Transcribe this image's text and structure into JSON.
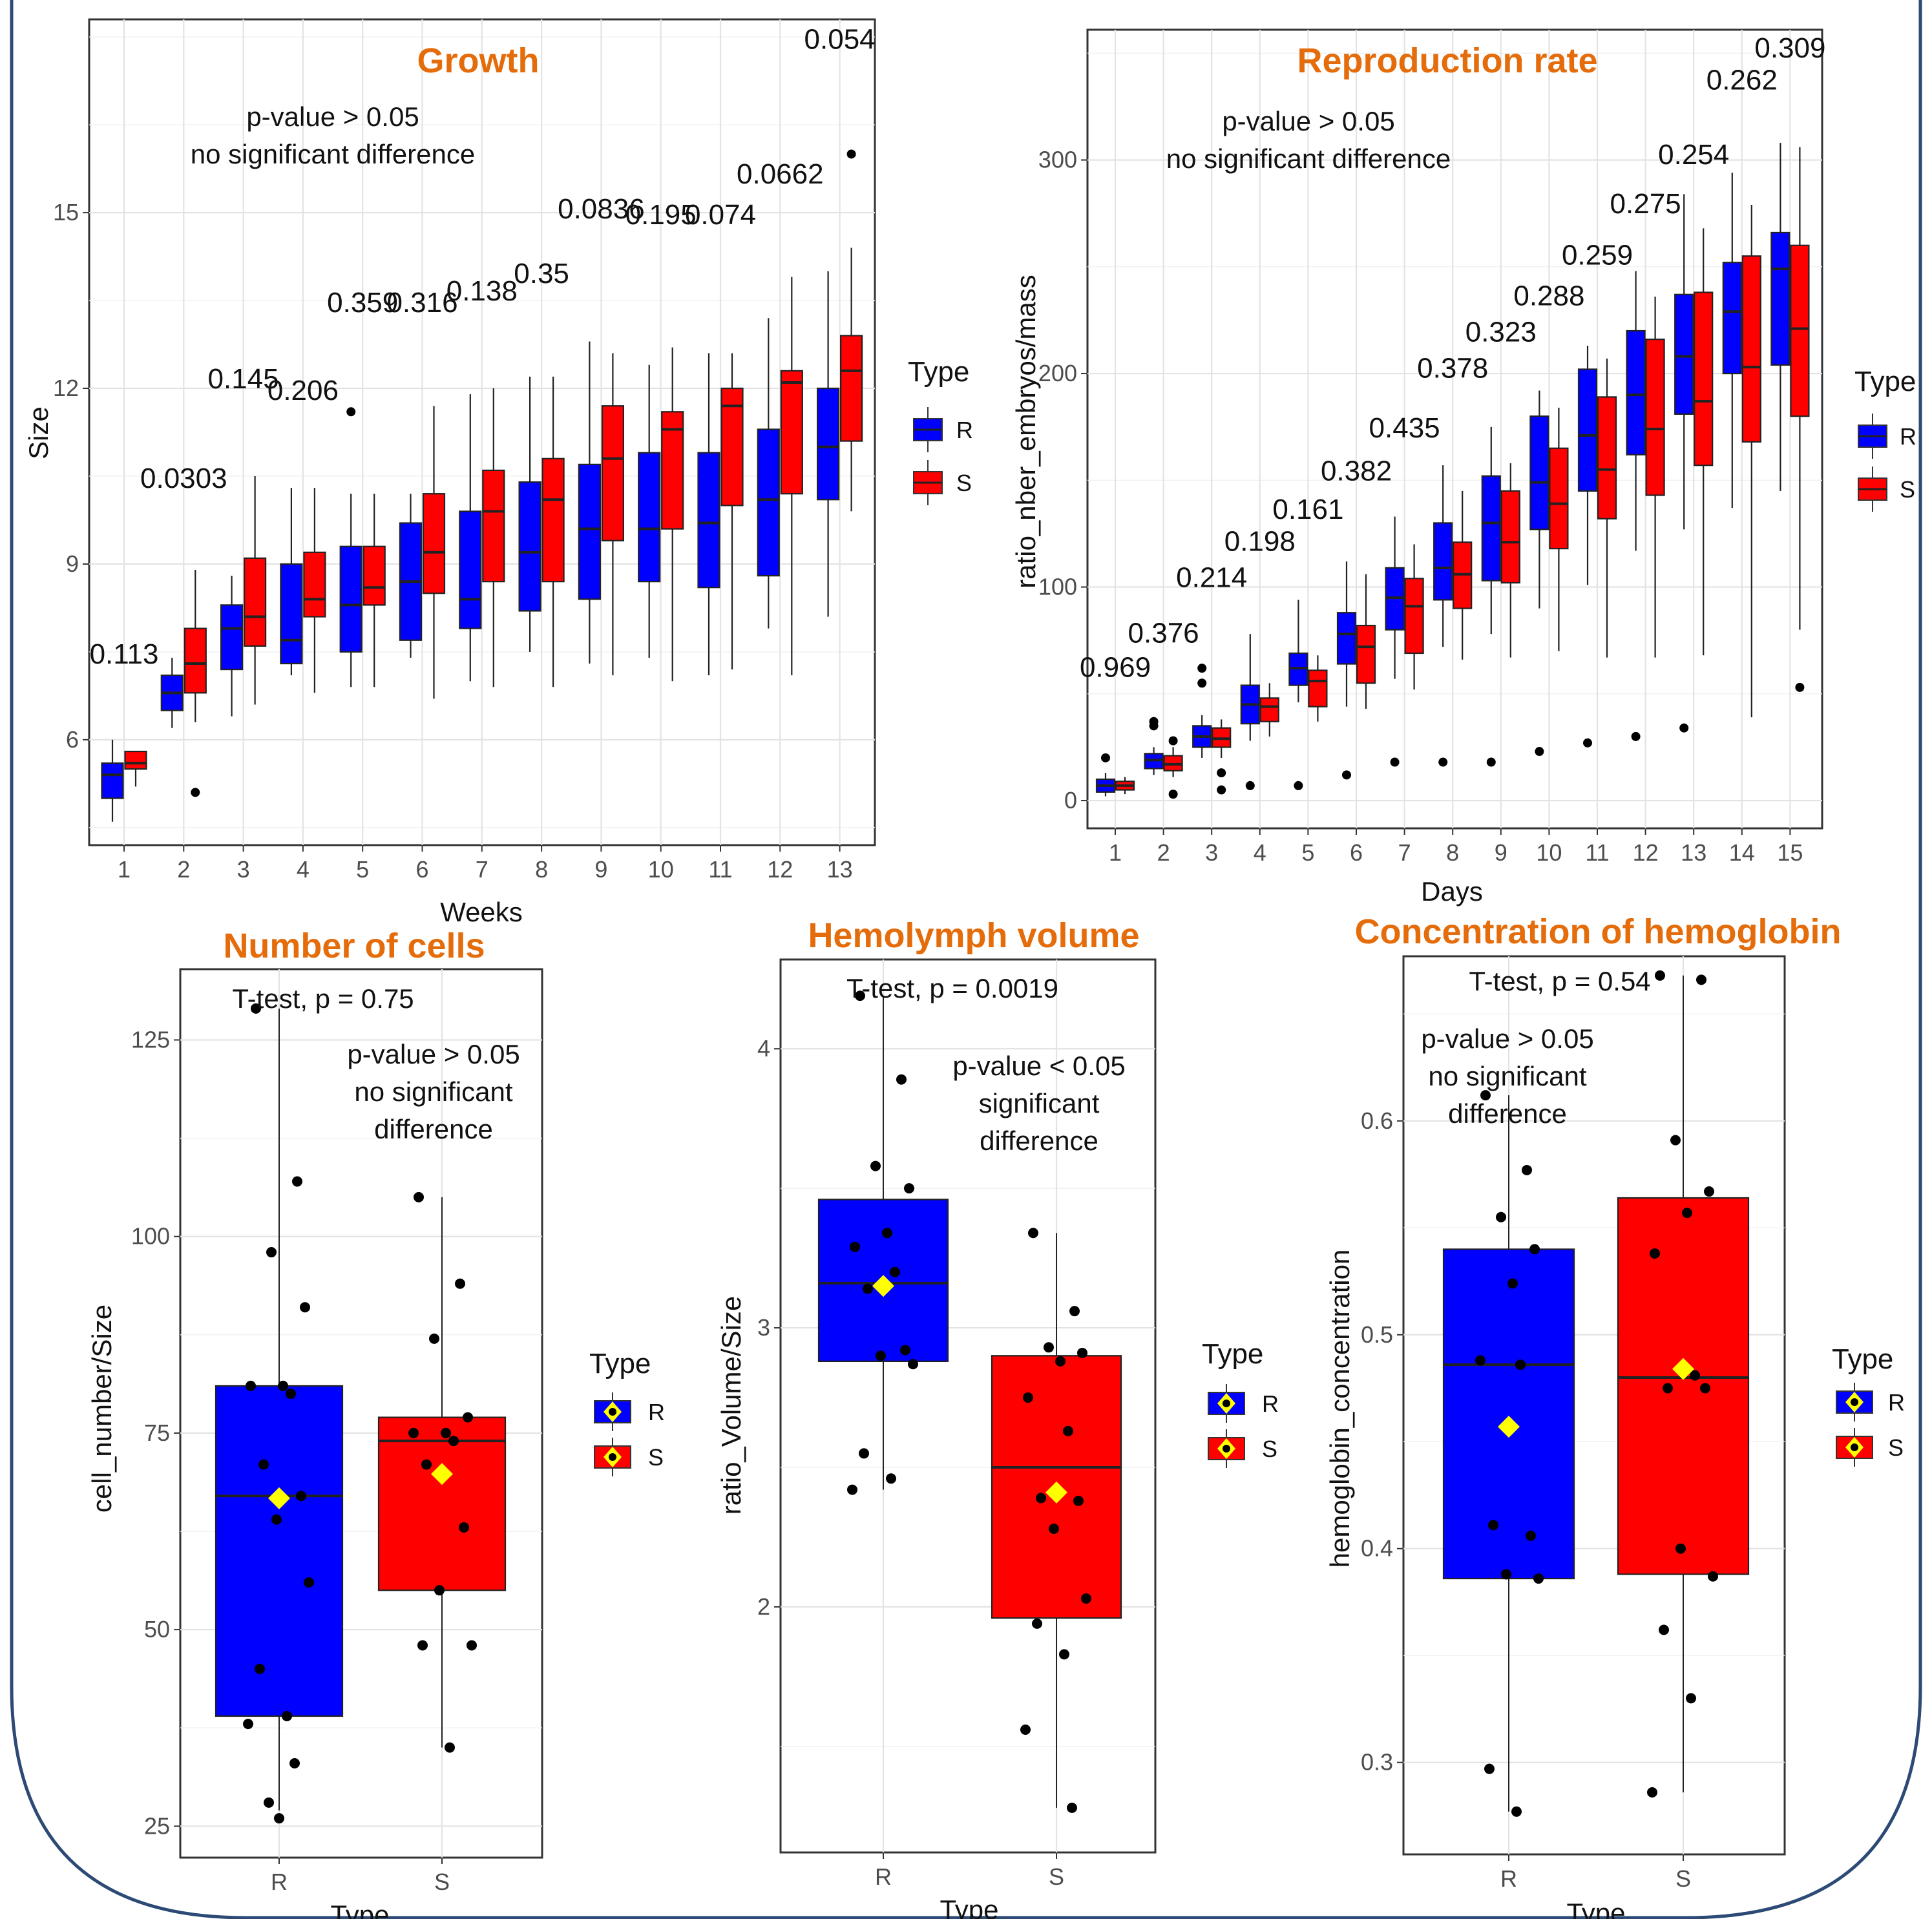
{
  "colors": {
    "R": "#0000ff",
    "S": "#ff0000",
    "title": "#e46c0a",
    "mean_marker": "#ffff00",
    "frame": "#2c4a75"
  },
  "panels": {
    "growth": {
      "title": "Growth",
      "note_line1": "p-value > 0.05",
      "note_line2": "no significant difference",
      "legend_title": "Type",
      "legend_R": "R",
      "legend_S": "S"
    },
    "reproduction": {
      "title": "Reproduction rate",
      "note_line1": "p-value > 0.05",
      "note_line2": "no significant difference",
      "legend_title": "Type",
      "legend_R": "R",
      "legend_S": "S"
    },
    "cells": {
      "title": "Number of cells",
      "ttest": "T-test, p = 0.75",
      "note_line1": "p-value > 0.05",
      "note_line2": "no significant",
      "note_line3": "difference",
      "legend_title": "Type",
      "legend_R": "R",
      "legend_S": "S"
    },
    "hemolymph": {
      "title": "Hemolymph volume",
      "ttest": "T-test, p = 0.0019",
      "note_line1": "p-value < 0.05",
      "note_line2": "significant",
      "note_line3": "difference",
      "legend_title": "Type",
      "legend_R": "R",
      "legend_S": "S"
    },
    "hemoglobin": {
      "title": "Concentration of hemoglobin",
      "ttest": "T-test, p = 0.54",
      "note_line1": "p-value > 0.05",
      "note_line2": "no significant",
      "note_line3": "difference",
      "legend_title": "Type",
      "legend_R": "R",
      "legend_S": "S"
    }
  },
  "chart_data": [
    {
      "type": "boxplot",
      "title": "Growth",
      "xlabel": "Weeks",
      "ylabel": "Size",
      "ylim": [
        4.2,
        18.3
      ],
      "yticks": [
        6,
        9,
        12,
        15
      ],
      "categories": [
        "1",
        "2",
        "3",
        "4",
        "5",
        "6",
        "7",
        "8",
        "9",
        "10",
        "11",
        "12",
        "13"
      ],
      "p_values": [
        "0.113",
        "0.0303",
        "0.145",
        "0.206",
        "0.359",
        "0.316",
        "0.138",
        "0.35",
        "0.0836",
        "0.195",
        "0.074",
        "0.0662",
        "0.054"
      ],
      "p_label_y": [
        7.3,
        10.3,
        12.0,
        11.8,
        13.3,
        13.3,
        13.5,
        13.8,
        14.9,
        14.8,
        14.8,
        15.5,
        17.8
      ],
      "series": [
        {
          "name": "R",
          "boxes": [
            {
              "min": 4.6,
              "q1": 5.0,
              "median": 5.4,
              "q3": 5.6,
              "max": 6.0,
              "outliers": []
            },
            {
              "min": 6.2,
              "q1": 6.5,
              "median": 6.8,
              "q3": 7.1,
              "max": 7.4,
              "outliers": []
            },
            {
              "min": 6.4,
              "q1": 7.2,
              "median": 7.9,
              "q3": 8.3,
              "max": 8.8,
              "outliers": []
            },
            {
              "min": 7.1,
              "q1": 7.3,
              "median": 7.7,
              "q3": 9.0,
              "max": 10.3,
              "outliers": []
            },
            {
              "min": 6.9,
              "q1": 7.5,
              "median": 8.3,
              "q3": 9.3,
              "max": 10.2,
              "outliers": [
                11.6
              ]
            },
            {
              "min": 7.4,
              "q1": 7.7,
              "median": 8.7,
              "q3": 9.7,
              "max": 10.2,
              "outliers": []
            },
            {
              "min": 7.0,
              "q1": 7.9,
              "median": 8.4,
              "q3": 9.9,
              "max": 11.9,
              "outliers": []
            },
            {
              "min": 7.5,
              "q1": 8.2,
              "median": 9.2,
              "q3": 10.4,
              "max": 12.2,
              "outliers": []
            },
            {
              "min": 7.3,
              "q1": 8.4,
              "median": 9.6,
              "q3": 10.7,
              "max": 12.8,
              "outliers": []
            },
            {
              "min": 7.4,
              "q1": 8.7,
              "median": 9.6,
              "q3": 10.9,
              "max": 12.4,
              "outliers": []
            },
            {
              "min": 7.1,
              "q1": 8.6,
              "median": 9.7,
              "q3": 10.9,
              "max": 12.6,
              "outliers": []
            },
            {
              "min": 7.9,
              "q1": 8.8,
              "median": 10.1,
              "q3": 11.3,
              "max": 13.2,
              "outliers": []
            },
            {
              "min": 8.1,
              "q1": 10.1,
              "median": 11.0,
              "q3": 12.0,
              "max": 14.0,
              "outliers": []
            }
          ]
        },
        {
          "name": "S",
          "boxes": [
            {
              "min": 5.2,
              "q1": 5.5,
              "median": 5.6,
              "q3": 5.8,
              "max": 5.8,
              "outliers": []
            },
            {
              "min": 6.3,
              "q1": 6.8,
              "median": 7.3,
              "q3": 7.9,
              "max": 8.9,
              "outliers": [
                5.1
              ]
            },
            {
              "min": 6.6,
              "q1": 7.6,
              "median": 8.1,
              "q3": 9.1,
              "max": 10.5,
              "outliers": []
            },
            {
              "min": 6.8,
              "q1": 8.1,
              "median": 8.4,
              "q3": 9.2,
              "max": 10.3,
              "outliers": []
            },
            {
              "min": 6.9,
              "q1": 8.3,
              "median": 8.6,
              "q3": 9.3,
              "max": 10.2,
              "outliers": []
            },
            {
              "min": 6.7,
              "q1": 8.5,
              "median": 9.2,
              "q3": 10.2,
              "max": 11.7,
              "outliers": []
            },
            {
              "min": 6.9,
              "q1": 8.7,
              "median": 9.9,
              "q3": 10.6,
              "max": 12.0,
              "outliers": []
            },
            {
              "min": 6.9,
              "q1": 8.7,
              "median": 10.1,
              "q3": 10.8,
              "max": 12.2,
              "outliers": []
            },
            {
              "min": 7.1,
              "q1": 9.4,
              "median": 10.8,
              "q3": 11.7,
              "max": 12.6,
              "outliers": []
            },
            {
              "min": 7.0,
              "q1": 9.6,
              "median": 11.3,
              "q3": 11.6,
              "max": 12.7,
              "outliers": []
            },
            {
              "min": 7.2,
              "q1": 10.0,
              "median": 11.7,
              "q3": 12.0,
              "max": 12.6,
              "outliers": []
            },
            {
              "min": 7.1,
              "q1": 10.2,
              "median": 12.1,
              "q3": 12.3,
              "max": 13.9,
              "outliers": []
            },
            {
              "min": 9.9,
              "q1": 11.1,
              "median": 12.3,
              "q3": 12.9,
              "max": 14.4,
              "outliers": [
                16.0
              ]
            }
          ]
        }
      ],
      "grid": true,
      "legend": "right"
    },
    {
      "type": "boxplot",
      "title": "Reproduction rate",
      "xlabel": "Days",
      "ylabel": "ratio_nber_embryos/mass",
      "ylim": [
        -13,
        361
      ],
      "yticks": [
        0,
        100,
        200,
        300
      ],
      "categories": [
        "1",
        "2",
        "3",
        "4",
        "5",
        "6",
        "7",
        "8",
        "9",
        "10",
        "11",
        "12",
        "13",
        "14",
        "15"
      ],
      "p_values": [
        "0.969",
        "0.376",
        "0.214",
        "0.198",
        "0.161",
        "0.382",
        "0.435",
        "0.378",
        "0.323",
        "0.288",
        "0.259",
        "0.275",
        "0.254",
        "0.262",
        "0.309"
      ],
      "p_label_y": [
        58,
        74,
        100,
        117,
        132,
        150,
        170,
        198,
        215,
        232,
        251,
        275,
        298,
        333,
        348
      ],
      "series": [
        {
          "name": "R",
          "boxes": [
            {
              "min": 2,
              "q1": 4,
              "median": 7,
              "q3": 10,
              "max": 13,
              "outliers": [
                20
              ]
            },
            {
              "min": 12,
              "q1": 15,
              "median": 19,
              "q3": 22,
              "max": 25,
              "outliers": [
                35,
                37
              ]
            },
            {
              "min": 20,
              "q1": 25,
              "median": 30,
              "q3": 35,
              "max": 40,
              "outliers": [
                55,
                62
              ]
            },
            {
              "min": 28,
              "q1": 36,
              "median": 45,
              "q3": 54,
              "max": 78,
              "outliers": [
                7
              ]
            },
            {
              "min": 46,
              "q1": 54,
              "median": 62,
              "q3": 69,
              "max": 94,
              "outliers": [
                7
              ]
            },
            {
              "min": 44,
              "q1": 64,
              "median": 78,
              "q3": 88,
              "max": 112,
              "outliers": [
                12
              ]
            },
            {
              "min": 57,
              "q1": 80,
              "median": 95,
              "q3": 109,
              "max": 133,
              "outliers": [
                18
              ]
            },
            {
              "min": 72,
              "q1": 94,
              "median": 109,
              "q3": 130,
              "max": 157,
              "outliers": [
                18
              ]
            },
            {
              "min": 78,
              "q1": 103,
              "median": 130,
              "q3": 152,
              "max": 175,
              "outliers": [
                18
              ]
            },
            {
              "min": 90,
              "q1": 127,
              "median": 149,
              "q3": 180,
              "max": 192,
              "outliers": [
                23
              ]
            },
            {
              "min": 101,
              "q1": 145,
              "median": 171,
              "q3": 202,
              "max": 213,
              "outliers": [
                27
              ]
            },
            {
              "min": 117,
              "q1": 162,
              "median": 190,
              "q3": 220,
              "max": 248,
              "outliers": [
                30
              ]
            },
            {
              "min": 127,
              "q1": 181,
              "median": 208,
              "q3": 237,
              "max": 284,
              "outliers": [
                34
              ]
            },
            {
              "min": 137,
              "q1": 200,
              "median": 229,
              "q3": 252,
              "max": 294,
              "outliers": []
            },
            {
              "min": 145,
              "q1": 204,
              "median": 249,
              "q3": 266,
              "max": 308,
              "outliers": []
            }
          ]
        },
        {
          "name": "S",
          "boxes": [
            {
              "min": 3,
              "q1": 5,
              "median": 7,
              "q3": 9,
              "max": 11,
              "outliers": []
            },
            {
              "min": 11,
              "q1": 14,
              "median": 17,
              "q3": 21,
              "max": 25,
              "outliers": [
                3,
                28
              ]
            },
            {
              "min": 20,
              "q1": 25,
              "median": 29,
              "q3": 34,
              "max": 38,
              "outliers": [
                5,
                13
              ]
            },
            {
              "min": 30,
              "q1": 37,
              "median": 44,
              "q3": 48,
              "max": 55,
              "outliers": []
            },
            {
              "min": 37,
              "q1": 44,
              "median": 56,
              "q3": 61,
              "max": 68,
              "outliers": []
            },
            {
              "min": 43,
              "q1": 55,
              "median": 72,
              "q3": 82,
              "max": 106,
              "outliers": []
            },
            {
              "min": 52,
              "q1": 69,
              "median": 91,
              "q3": 104,
              "max": 120,
              "outliers": []
            },
            {
              "min": 66,
              "q1": 90,
              "median": 106,
              "q3": 121,
              "max": 145,
              "outliers": []
            },
            {
              "min": 67,
              "q1": 102,
              "median": 121,
              "q3": 145,
              "max": 158,
              "outliers": []
            },
            {
              "min": 70,
              "q1": 118,
              "median": 139,
              "q3": 165,
              "max": 184,
              "outliers": []
            },
            {
              "min": 67,
              "q1": 132,
              "median": 155,
              "q3": 189,
              "max": 207,
              "outliers": []
            },
            {
              "min": 67,
              "q1": 143,
              "median": 174,
              "q3": 216,
              "max": 236,
              "outliers": []
            },
            {
              "min": 68,
              "q1": 157,
              "median": 187,
              "q3": 238,
              "max": 268,
              "outliers": []
            },
            {
              "min": 39,
              "q1": 168,
              "median": 203,
              "q3": 255,
              "max": 279,
              "outliers": []
            },
            {
              "min": 80,
              "q1": 180,
              "median": 221,
              "q3": 260,
              "max": 306,
              "outliers": [
                53
              ]
            }
          ]
        }
      ],
      "grid": true,
      "legend": "right"
    },
    {
      "type": "boxplot",
      "title": "Number of cells",
      "xlabel": "Type",
      "ylabel": "cell_number/Size",
      "ylim": [
        21,
        134
      ],
      "yticks": [
        25,
        50,
        75,
        100,
        125
      ],
      "categories": [
        "R",
        "S"
      ],
      "series": [
        {
          "name": "R",
          "min": 27,
          "q1": 39,
          "median": 67,
          "q3": 81,
          "max": 129,
          "mean": 66.7,
          "points": [
            129,
            107,
            98,
            91,
            81,
            81,
            80,
            71,
            67,
            64,
            56,
            45,
            39,
            38,
            33,
            28,
            26
          ]
        },
        {
          "name": "S",
          "min": 35,
          "q1": 55,
          "median": 74,
          "q3": 77,
          "max": 105,
          "mean": 69.8,
          "points": [
            105,
            94,
            87,
            77,
            75,
            75,
            74,
            71,
            63,
            55,
            48,
            48,
            35
          ]
        }
      ],
      "grid": true,
      "legend": "right"
    },
    {
      "type": "boxplot",
      "title": "Hemolymph volume",
      "xlabel": "Type",
      "ylabel": "ratio_Volume/Size",
      "ylim": [
        1.12,
        4.32
      ],
      "yticks": [
        2,
        3,
        4
      ],
      "categories": [
        "R",
        "S"
      ],
      "series": [
        {
          "name": "R",
          "min": 2.42,
          "q1": 2.88,
          "median": 3.16,
          "q3": 3.46,
          "max": 4.19,
          "mean": 3.15,
          "points": [
            4.19,
            3.89,
            3.58,
            3.5,
            3.34,
            3.29,
            3.2,
            3.14,
            2.92,
            2.9,
            2.87,
            2.55,
            2.46,
            2.42
          ]
        },
        {
          "name": "S",
          "min": 1.28,
          "q1": 1.96,
          "median": 2.5,
          "q3": 2.9,
          "max": 3.34,
          "mean": 2.41,
          "points": [
            3.34,
            3.06,
            2.93,
            2.91,
            2.88,
            2.75,
            2.63,
            2.39,
            2.38,
            2.28,
            2.03,
            1.94,
            1.83,
            1.56,
            1.28
          ]
        }
      ],
      "grid": true,
      "legend": "right"
    },
    {
      "type": "boxplot",
      "title": "Concentration of hemoglobin",
      "xlabel": "Type",
      "ylabel": "hemoglobin_concentration",
      "ylim": [
        0.257,
        0.677
      ],
      "yticks": [
        0.3,
        0.4,
        0.5,
        0.6
      ],
      "categories": [
        "R",
        "S"
      ],
      "series": [
        {
          "name": "R",
          "min": 0.277,
          "q1": 0.386,
          "median": 0.486,
          "q3": 0.54,
          "max": 0.612,
          "mean": 0.457,
          "points": [
            0.612,
            0.577,
            0.555,
            0.54,
            0.524,
            0.488,
            0.486,
            0.411,
            0.406,
            0.388,
            0.386,
            0.297,
            0.277
          ]
        },
        {
          "name": "S",
          "min": 0.286,
          "q1": 0.388,
          "median": 0.48,
          "q3": 0.564,
          "max": 0.668,
          "mean": 0.484,
          "points": [
            0.668,
            0.666,
            0.591,
            0.567,
            0.557,
            0.538,
            0.481,
            0.475,
            0.475,
            0.4,
            0.387,
            0.362,
            0.33,
            0.286
          ]
        }
      ],
      "grid": true,
      "legend": "right"
    }
  ]
}
